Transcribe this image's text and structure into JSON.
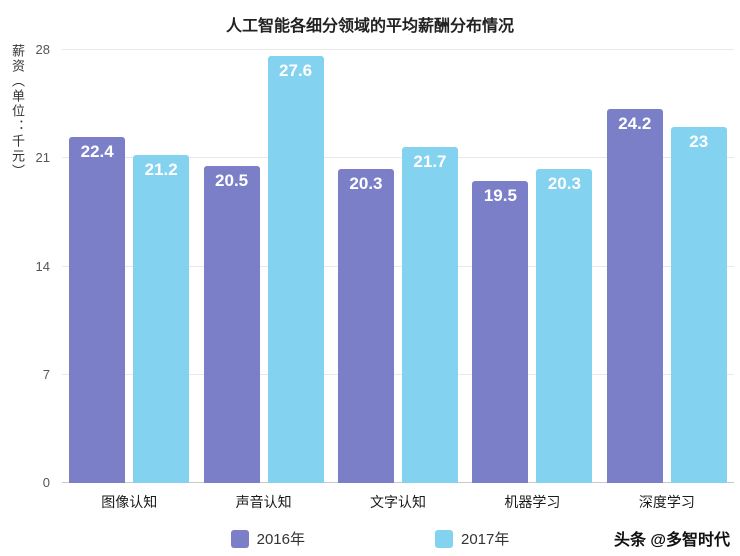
{
  "chart_data": {
    "type": "bar",
    "title": "人工智能各细分领域的平均薪酬分布情况",
    "ylabel": "薪资（单位：千元）",
    "categories": [
      "图像认知",
      "声音认知",
      "文字认知",
      "机器学习",
      "深度学习"
    ],
    "series": [
      {
        "name": "2016年",
        "color": "#7b7fc8",
        "values": [
          22.4,
          20.5,
          20.3,
          19.5,
          24.2
        ]
      },
      {
        "name": "2017年",
        "color": "#82d2f0",
        "values": [
          21.2,
          27.6,
          21.7,
          20.3,
          23
        ]
      }
    ],
    "yticks": [
      0,
      7,
      14,
      21,
      28
    ],
    "ylim": [
      0,
      28
    ],
    "grid": true,
    "legend_position": "bottom"
  },
  "watermark": "头条 @多智时代"
}
